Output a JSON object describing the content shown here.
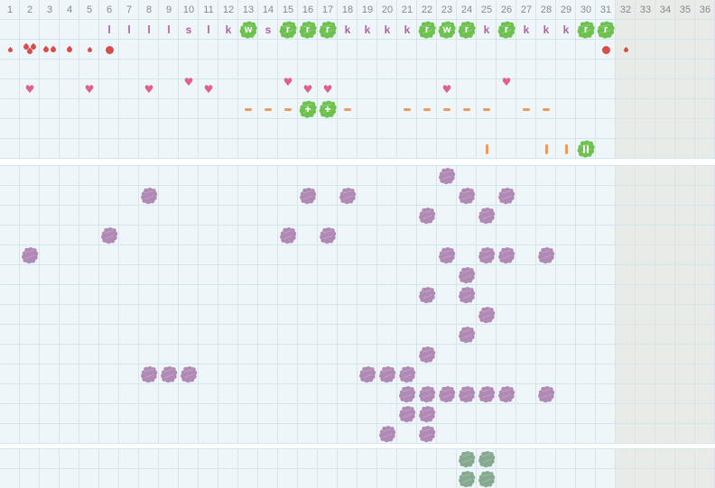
{
  "columns": {
    "labels": [
      "1",
      "2",
      "3",
      "4",
      "5",
      "6",
      "7",
      "8",
      "9",
      "10",
      "11",
      "12",
      "13",
      "14",
      "15",
      "16",
      "17",
      "18",
      "19",
      "20",
      "21",
      "22",
      "23",
      "24",
      "25",
      "26",
      "27",
      "28",
      "29",
      "30",
      "31",
      "32",
      "33",
      "34",
      "35",
      "36"
    ],
    "inactive_start": 32
  },
  "colors": {
    "cell_bg": "#eff6f9",
    "inactive_bg": "#e9ebe8",
    "grid_line": "#d2e6f0",
    "gap_bg": "#fcfeff",
    "header_text": "#84898e",
    "letter_text": "#b161a5",
    "highlight_green": "#6cc24d",
    "entry_purple": "#b089b5",
    "bottom_green": "#86aa8f",
    "blood_red": "#dc4b4b",
    "heart_pink": "#e15f8b",
    "mark_orange": "#ea9b61"
  },
  "top_section": {
    "rows": 8,
    "letters_row": {
      "row": 1,
      "items": [
        {
          "col": 6,
          "ch": "l",
          "hl": false
        },
        {
          "col": 7,
          "ch": "l",
          "hl": false
        },
        {
          "col": 8,
          "ch": "l",
          "hl": false
        },
        {
          "col": 9,
          "ch": "l",
          "hl": false
        },
        {
          "col": 10,
          "ch": "s",
          "hl": false
        },
        {
          "col": 11,
          "ch": "l",
          "hl": false
        },
        {
          "col": 12,
          "ch": "k",
          "hl": false
        },
        {
          "col": 13,
          "ch": "w",
          "hl": true
        },
        {
          "col": 14,
          "ch": "s",
          "hl": false
        },
        {
          "col": 15,
          "ch": "r",
          "hl": true
        },
        {
          "col": 16,
          "ch": "r",
          "hl": true
        },
        {
          "col": 17,
          "ch": "r",
          "hl": true
        },
        {
          "col": 18,
          "ch": "k",
          "hl": false
        },
        {
          "col": 19,
          "ch": "k",
          "hl": false
        },
        {
          "col": 20,
          "ch": "k",
          "hl": false
        },
        {
          "col": 21,
          "ch": "k",
          "hl": false
        },
        {
          "col": 22,
          "ch": "r",
          "hl": true
        },
        {
          "col": 23,
          "ch": "w",
          "hl": true
        },
        {
          "col": 24,
          "ch": "r",
          "hl": true
        },
        {
          "col": 25,
          "ch": "k",
          "hl": false
        },
        {
          "col": 26,
          "ch": "r",
          "hl": true
        },
        {
          "col": 27,
          "ch": "k",
          "hl": false
        },
        {
          "col": 28,
          "ch": "k",
          "hl": false
        },
        {
          "col": 29,
          "ch": "k",
          "hl": false
        },
        {
          "col": 30,
          "ch": "r",
          "hl": true
        },
        {
          "col": 31,
          "ch": "r",
          "hl": true
        }
      ]
    },
    "flow_row": {
      "row": 2,
      "items": [
        {
          "col": 1,
          "v": "drop-small"
        },
        {
          "col": 2,
          "v": "drop-triple"
        },
        {
          "col": 3,
          "v": "drop-double"
        },
        {
          "col": 4,
          "v": "drop"
        },
        {
          "col": 5,
          "v": "drop-small"
        },
        {
          "col": 6,
          "v": "dot"
        },
        {
          "col": 31,
          "v": "dot"
        },
        {
          "col": 32,
          "v": "drop-small"
        }
      ]
    },
    "hearts_row": {
      "row": 4,
      "items": [
        {
          "col": 2,
          "raised": false
        },
        {
          "col": 5,
          "raised": false
        },
        {
          "col": 8,
          "raised": false
        },
        {
          "col": 10,
          "raised": true
        },
        {
          "col": 11,
          "raised": false
        },
        {
          "col": 15,
          "raised": true
        },
        {
          "col": 16,
          "raised": false
        },
        {
          "col": 17,
          "raised": false
        },
        {
          "col": 23,
          "raised": false
        },
        {
          "col": 26,
          "raised": true
        }
      ],
      "heart_glyph": "♥"
    },
    "dashes_row": {
      "row": 5,
      "dash_cols": [
        13,
        14,
        15,
        18,
        21,
        22,
        23,
        24,
        25,
        27,
        28
      ],
      "plus_cols": [
        16,
        17
      ],
      "plus_glyph": "+"
    },
    "bars_row": {
      "row": 7,
      "bar_cols": [
        25,
        28,
        29
      ],
      "pause_cols": [
        30
      ]
    }
  },
  "middle_section": {
    "rows": 14,
    "blob_rows": {
      "1": [
        23
      ],
      "2": [
        8,
        16,
        18,
        24,
        26
      ],
      "3": [
        22,
        25
      ],
      "4": [
        6,
        15,
        17
      ],
      "5": [
        2,
        23,
        25,
        26,
        28
      ],
      "6": [
        24
      ],
      "7": [
        22,
        24
      ],
      "8": [
        25
      ],
      "9": [
        24
      ],
      "10": [
        22
      ],
      "11": [
        8,
        9,
        10,
        19,
        20,
        21
      ],
      "12": [
        21,
        22,
        23,
        24,
        25,
        26,
        28
      ],
      "13": [
        21,
        22
      ],
      "14": [
        20,
        22
      ]
    }
  },
  "bottom_section": {
    "rows": 2,
    "blob_rows": {
      "1": [
        24,
        25
      ],
      "2": [
        24,
        25
      ]
    }
  }
}
